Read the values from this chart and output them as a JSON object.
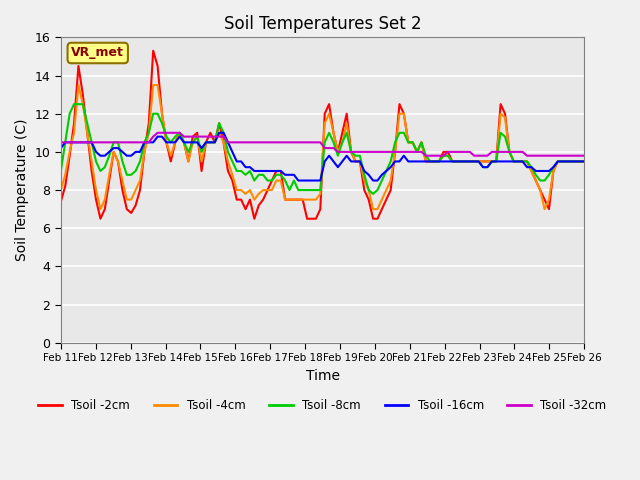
{
  "title": "Soil Temperatures Set 2",
  "xlabel": "Time",
  "ylabel": "Soil Temperature (C)",
  "ylim": [
    0,
    16
  ],
  "background_color": "#e8e8e8",
  "vr_label": "VR_met",
  "x_tick_labels": [
    "Feb 11",
    "Feb 12",
    "Feb 13",
    "Feb 14",
    "Feb 15",
    "Feb 16",
    "Feb 17",
    "Feb 18",
    "Feb 19",
    "Feb 20",
    "Feb 21",
    "Feb 22",
    "Feb 23",
    "Feb 24",
    "Feb 25",
    "Feb 26"
  ],
  "series_colors": {
    "Tsoil -2cm": "#ff0000",
    "Tsoil -4cm": "#ff8c00",
    "Tsoil -8cm": "#00cc00",
    "Tsoil -16cm": "#0000ff",
    "Tsoil -32cm": "#cc00cc"
  },
  "tsoil_2cm": [
    7.4,
    8.2,
    9.8,
    11.5,
    14.5,
    13.0,
    11.0,
    9.0,
    7.5,
    6.5,
    7.0,
    8.5,
    10.0,
    9.5,
    8.0,
    7.0,
    6.8,
    7.2,
    8.0,
    10.0,
    11.5,
    15.3,
    14.5,
    12.0,
    10.5,
    9.5,
    10.5,
    11.0,
    10.5,
    9.5,
    10.8,
    11.0,
    9.0,
    10.5,
    11.0,
    10.5,
    11.5,
    10.5,
    9.0,
    8.5,
    7.5,
    7.5,
    7.0,
    7.5,
    6.5,
    7.2,
    7.5,
    8.0,
    8.5,
    9.0,
    9.0,
    7.5,
    7.5,
    7.5,
    7.5,
    7.5,
    6.5,
    6.5,
    6.5,
    7.0,
    12.0,
    12.5,
    11.0,
    10.0,
    11.0,
    12.0,
    10.0,
    9.5,
    9.5,
    8.0,
    7.5,
    6.5,
    6.5,
    7.0,
    7.5,
    8.0,
    10.0,
    12.5,
    12.0,
    10.5,
    10.5,
    10.0,
    10.5,
    9.5,
    9.5,
    9.5,
    9.5,
    10.0,
    10.0,
    9.5,
    9.5,
    9.5,
    9.5,
    9.5,
    9.5,
    9.5,
    9.5,
    9.5,
    9.5,
    9.5,
    12.5,
    12.0,
    10.0,
    9.5,
    9.5,
    9.5,
    9.5,
    9.0,
    8.5,
    8.0,
    7.5,
    7.0,
    9.0,
    9.5,
    9.5,
    9.5,
    9.5,
    9.5,
    9.5,
    9.5
  ],
  "tsoil_4cm": [
    8.0,
    8.8,
    10.0,
    11.0,
    13.5,
    12.5,
    11.0,
    9.5,
    8.0,
    7.0,
    7.5,
    8.8,
    10.0,
    9.5,
    8.5,
    7.5,
    7.5,
    8.0,
    8.5,
    10.0,
    11.0,
    13.5,
    13.5,
    12.0,
    10.5,
    9.8,
    10.5,
    11.0,
    10.5,
    9.5,
    10.5,
    10.8,
    9.5,
    10.5,
    10.5,
    10.5,
    11.0,
    10.5,
    9.5,
    8.8,
    8.0,
    8.0,
    7.8,
    8.0,
    7.5,
    7.8,
    8.0,
    8.0,
    8.0,
    8.5,
    8.5,
    7.5,
    7.5,
    7.5,
    7.5,
    7.5,
    7.5,
    7.5,
    7.5,
    7.8,
    11.5,
    12.0,
    11.0,
    10.0,
    10.5,
    11.5,
    10.0,
    9.5,
    9.5,
    8.5,
    8.0,
    7.0,
    7.0,
    7.5,
    8.0,
    8.5,
    10.0,
    12.0,
    12.0,
    10.5,
    10.5,
    10.0,
    10.5,
    9.5,
    9.5,
    9.5,
    9.5,
    9.8,
    9.8,
    9.5,
    9.5,
    9.5,
    9.5,
    9.5,
    9.5,
    9.5,
    9.5,
    9.5,
    9.5,
    9.5,
    12.0,
    11.8,
    10.0,
    9.5,
    9.5,
    9.5,
    9.5,
    9.0,
    8.5,
    8.0,
    7.0,
    7.5,
    9.0,
    9.5,
    9.5,
    9.5,
    9.5,
    9.5,
    9.5,
    9.5
  ],
  "tsoil_8cm": [
    9.0,
    10.5,
    12.0,
    12.5,
    12.5,
    12.5,
    11.5,
    10.5,
    9.5,
    9.0,
    9.2,
    9.8,
    10.5,
    10.5,
    9.5,
    8.8,
    8.8,
    9.0,
    9.5,
    10.5,
    11.0,
    12.0,
    12.0,
    11.5,
    10.8,
    10.5,
    10.8,
    11.0,
    10.5,
    10.0,
    10.5,
    10.8,
    10.0,
    10.5,
    10.5,
    10.5,
    11.5,
    11.0,
    10.0,
    9.5,
    9.0,
    9.0,
    8.8,
    9.0,
    8.5,
    8.8,
    8.8,
    8.5,
    8.5,
    8.8,
    8.8,
    8.5,
    8.0,
    8.5,
    8.0,
    8.0,
    8.0,
    8.0,
    8.0,
    8.0,
    10.5,
    11.0,
    10.5,
    9.8,
    10.5,
    11.0,
    10.0,
    9.8,
    9.8,
    8.8,
    8.0,
    7.8,
    8.0,
    8.5,
    9.0,
    9.5,
    10.5,
    11.0,
    11.0,
    10.5,
    10.5,
    10.0,
    10.5,
    9.8,
    9.5,
    9.5,
    9.5,
    9.8,
    9.8,
    9.5,
    9.5,
    9.5,
    9.5,
    9.5,
    9.5,
    9.5,
    9.2,
    9.2,
    9.5,
    9.5,
    11.0,
    10.8,
    10.0,
    9.5,
    9.5,
    9.5,
    9.5,
    9.2,
    8.8,
    8.5,
    8.5,
    8.8,
    9.2,
    9.5,
    9.5,
    9.5,
    9.5,
    9.5,
    9.5,
    9.5
  ],
  "tsoil_16cm": [
    10.2,
    10.5,
    10.5,
    10.5,
    10.5,
    10.5,
    10.5,
    10.5,
    10.0,
    9.8,
    9.8,
    10.0,
    10.2,
    10.2,
    10.0,
    9.8,
    9.8,
    10.0,
    10.0,
    10.5,
    10.5,
    10.5,
    10.8,
    10.8,
    10.5,
    10.5,
    10.5,
    10.8,
    10.5,
    10.5,
    10.5,
    10.5,
    10.2,
    10.5,
    10.5,
    10.5,
    11.0,
    11.0,
    10.5,
    10.0,
    9.5,
    9.5,
    9.2,
    9.2,
    9.0,
    9.0,
    9.0,
    9.0,
    9.0,
    9.0,
    9.0,
    8.8,
    8.8,
    8.8,
    8.5,
    8.5,
    8.5,
    8.5,
    8.5,
    8.5,
    9.5,
    9.8,
    9.5,
    9.2,
    9.5,
    9.8,
    9.5,
    9.5,
    9.5,
    9.0,
    8.8,
    8.5,
    8.5,
    8.8,
    9.0,
    9.2,
    9.5,
    9.5,
    9.8,
    9.5,
    9.5,
    9.5,
    9.5,
    9.5,
    9.5,
    9.5,
    9.5,
    9.5,
    9.5,
    9.5,
    9.5,
    9.5,
    9.5,
    9.5,
    9.5,
    9.5,
    9.2,
    9.2,
    9.5,
    9.5,
    9.5,
    9.5,
    9.5,
    9.5,
    9.5,
    9.5,
    9.2,
    9.2,
    9.0,
    9.0,
    9.0,
    9.0,
    9.2,
    9.5,
    9.5,
    9.5,
    9.5,
    9.5,
    9.5,
    9.5
  ],
  "tsoil_32cm": [
    10.5,
    10.5,
    10.5,
    10.5,
    10.5,
    10.5,
    10.5,
    10.5,
    10.5,
    10.5,
    10.5,
    10.5,
    10.5,
    10.5,
    10.5,
    10.5,
    10.5,
    10.5,
    10.5,
    10.5,
    10.5,
    10.8,
    11.0,
    11.0,
    11.0,
    11.0,
    11.0,
    11.0,
    10.8,
    10.8,
    10.8,
    10.8,
    10.8,
    10.8,
    10.8,
    10.8,
    10.8,
    10.8,
    10.5,
    10.5,
    10.5,
    10.5,
    10.5,
    10.5,
    10.5,
    10.5,
    10.5,
    10.5,
    10.5,
    10.5,
    10.5,
    10.5,
    10.5,
    10.5,
    10.5,
    10.5,
    10.5,
    10.5,
    10.5,
    10.5,
    10.2,
    10.2,
    10.2,
    10.0,
    10.0,
    10.0,
    10.0,
    10.0,
    10.0,
    10.0,
    10.0,
    10.0,
    10.0,
    10.0,
    10.0,
    10.0,
    10.0,
    10.0,
    10.0,
    10.0,
    10.0,
    10.0,
    10.0,
    9.8,
    9.8,
    9.8,
    9.8,
    9.8,
    10.0,
    10.0,
    10.0,
    10.0,
    10.0,
    10.0,
    9.8,
    9.8,
    9.8,
    9.8,
    10.0,
    10.0,
    10.0,
    10.0,
    10.0,
    10.0,
    10.0,
    10.0,
    9.8,
    9.8,
    9.8,
    9.8,
    9.8,
    9.8,
    9.8,
    9.8,
    9.8,
    9.8,
    9.8,
    9.8,
    9.8,
    9.8
  ]
}
